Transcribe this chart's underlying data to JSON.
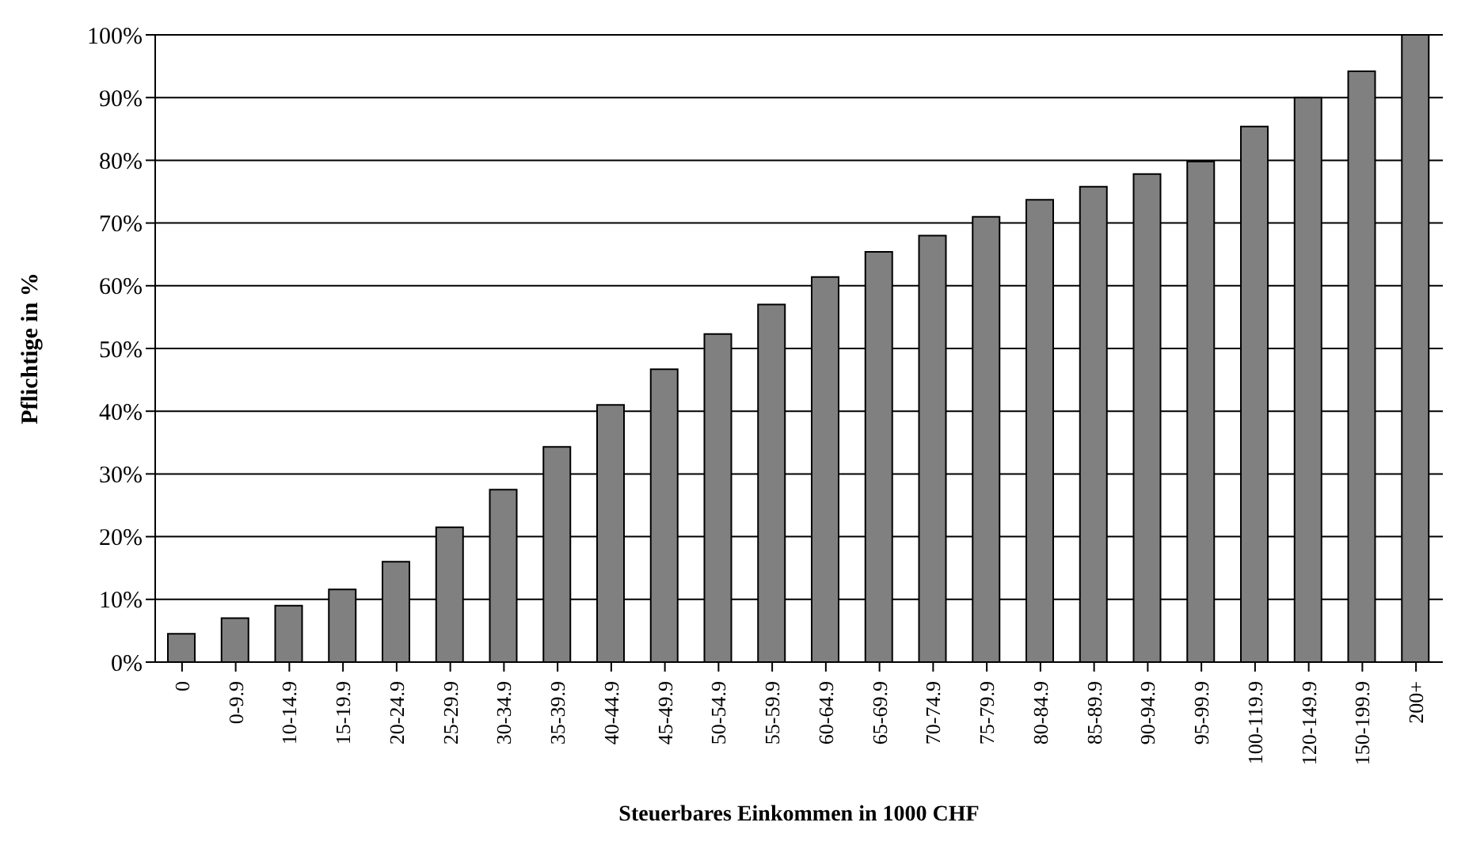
{
  "chart_data": {
    "type": "bar",
    "xlabel": "Steuerbares Einkommen in 1000 CHF",
    "ylabel": "Pflichtige in %",
    "categories": [
      "0",
      "0-9.9",
      "10-14.9",
      "15-19.9",
      "20-24.9",
      "25-29.9",
      "30-34.9",
      "35-39.9",
      "40-44.9",
      "45-49.9",
      "50-54.9",
      "55-59.9",
      "60-64.9",
      "65-69.9",
      "70-74.9",
      "75-79.9",
      "80-84.9",
      "85-89.9",
      "90-94.9",
      "95-99.9",
      "100-119.9",
      "120-149.9",
      "150-199.9",
      "200+"
    ],
    "values": [
      4.5,
      7,
      9,
      11.6,
      16,
      21.5,
      27.5,
      34.3,
      41,
      46.7,
      52.3,
      57,
      61.4,
      65.4,
      68,
      71,
      73.7,
      75.8,
      77.8,
      79.8,
      85.4,
      90,
      94.2,
      100
    ],
    "color": "#808080",
    "ylim": [
      0,
      100
    ],
    "yticks": [
      {
        "value": 0,
        "label": "0%"
      },
      {
        "value": 10,
        "label": "10%"
      },
      {
        "value": 20,
        "label": "20%"
      },
      {
        "value": 30,
        "label": "30%"
      },
      {
        "value": 40,
        "label": "40%"
      },
      {
        "value": 50,
        "label": "50%"
      },
      {
        "value": 60,
        "label": "60%"
      },
      {
        "value": 70,
        "label": "70%"
      },
      {
        "value": 80,
        "label": "80%"
      },
      {
        "value": 90,
        "label": "90%"
      },
      {
        "value": 100,
        "label": "100%"
      }
    ],
    "grid": "y"
  }
}
